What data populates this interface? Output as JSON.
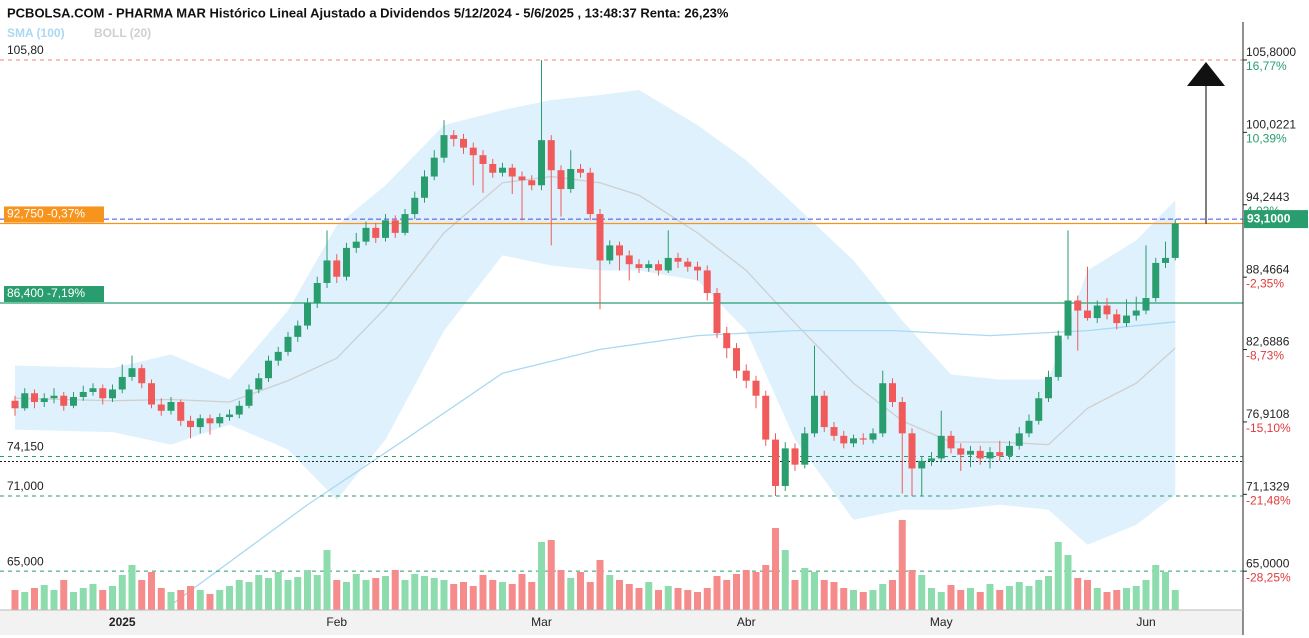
{
  "chart_data": {
    "type": "candlestick",
    "title": "PCBOLSA.COM - PHARMA MAR Histórico Lineal Ajustado a Dividendos 5/12/2024 - 5/6/2025 , 13:48:37 Renta: 26,23%",
    "legend": [
      {
        "name": "SMA (100)",
        "color": "#a9d9f3"
      },
      {
        "name": "BOLL (20)",
        "color": "#cfcfcf"
      }
    ],
    "up_color": "#2a9d6f",
    "down_color": "#f05a5a",
    "volume_up_color": "#8ddcae",
    "volume_down_color": "#f58b8b",
    "ylim": [
      61.9,
      108.83
    ],
    "yticks": [
      {
        "value": 105.8,
        "label": "105,8000"
      },
      {
        "value": 100.0221,
        "label": "100,0221"
      },
      {
        "value": 94.2443,
        "label": "94,2443"
      },
      {
        "value": 88.4664,
        "label": "88,4664"
      },
      {
        "value": 82.6886,
        "label": "82,6886"
      },
      {
        "value": 76.9108,
        "label": "76,9108"
      },
      {
        "value": 71.1329,
        "label": "71,1329"
      },
      {
        "value": 65.0,
        "label": "65,0000"
      }
    ],
    "ytick_changes": [
      "16,77%",
      "10,39%",
      "4,02%",
      "-2,35%",
      "-8,73%",
      "-15,10%",
      "-21,48%",
      "-28,25%"
    ],
    "xticks": [
      {
        "value": 11,
        "label": "2025"
      },
      {
        "value": 33,
        "label": "Feb"
      },
      {
        "value": 54,
        "label": "Mar"
      },
      {
        "value": 75,
        "label": "Abr"
      },
      {
        "value": 95,
        "label": "May"
      },
      {
        "value": 116,
        "label": "Jun"
      }
    ],
    "levels": [
      {
        "value": 105.8,
        "label": "105,80",
        "color": "#f08080",
        "style": "dashed",
        "box": false
      },
      {
        "value": 92.75,
        "label": "92,750 -0,37%",
        "color": "#f7941d",
        "style": "solid",
        "box": true
      },
      {
        "value": 86.4,
        "label": "86,400 -7,19%",
        "color": "#2a9d6f",
        "style": "solid",
        "box": true
      },
      {
        "value": 74.15,
        "label": "74,150",
        "color": "#2a9d6f",
        "style": "dashed",
        "box": false
      },
      {
        "value": 73.75,
        "label": null,
        "color": "#222222",
        "style": "dotted",
        "box": false
      },
      {
        "value": 71.0,
        "label": "71,000",
        "color": "#2a9d6f",
        "style": "dashed",
        "box": false
      },
      {
        "value": 65.0,
        "label": "65,000",
        "color": "#2a9d6f",
        "style": "dashed",
        "box": false
      }
    ],
    "last_price": {
      "value": 93.1,
      "label": "93,1000",
      "color": "#2a9d6f",
      "line_color": "#4a4af0"
    },
    "candles": [
      [
        78.6,
        79.0,
        77.4,
        78.0
      ],
      [
        78.0,
        79.6,
        77.8,
        79.2
      ],
      [
        79.2,
        79.5,
        78.0,
        78.5
      ],
      [
        78.5,
        79.2,
        78.1,
        78.8
      ],
      [
        78.8,
        79.6,
        78.4,
        79.0
      ],
      [
        79.0,
        79.3,
        77.8,
        78.2
      ],
      [
        78.2,
        79.3,
        78.0,
        78.9
      ],
      [
        78.9,
        79.8,
        78.6,
        79.3
      ],
      [
        79.3,
        80.0,
        79.0,
        79.6
      ],
      [
        79.6,
        79.9,
        78.3,
        78.8
      ],
      [
        78.8,
        79.9,
        78.5,
        79.5
      ],
      [
        79.5,
        81.5,
        79.2,
        80.5
      ],
      [
        80.5,
        82.2,
        80.2,
        81.2
      ],
      [
        81.2,
        81.5,
        79.6,
        80.0
      ],
      [
        80.0,
        80.3,
        78.0,
        78.3
      ],
      [
        78.3,
        78.8,
        77.4,
        77.8
      ],
      [
        77.8,
        78.9,
        77.5,
        78.5
      ],
      [
        78.5,
        78.7,
        76.6,
        77.0
      ],
      [
        77.0,
        77.4,
        75.6,
        76.5
      ],
      [
        76.5,
        77.5,
        76.0,
        77.2
      ],
      [
        77.2,
        77.5,
        75.9,
        76.8
      ],
      [
        76.8,
        77.6,
        76.5,
        77.3
      ],
      [
        77.3,
        77.9,
        77.0,
        77.5
      ],
      [
        77.5,
        78.6,
        77.2,
        78.2
      ],
      [
        78.2,
        79.9,
        78.0,
        79.5
      ],
      [
        79.5,
        80.8,
        79.2,
        80.4
      ],
      [
        80.4,
        82.2,
        80.1,
        81.8
      ],
      [
        81.8,
        82.9,
        81.4,
        82.5
      ],
      [
        82.5,
        84.1,
        82.2,
        83.7
      ],
      [
        83.7,
        85.0,
        83.3,
        84.6
      ],
      [
        84.6,
        86.8,
        84.3,
        86.4
      ],
      [
        86.4,
        88.5,
        86.0,
        88.0
      ],
      [
        88.0,
        92.2,
        87.6,
        89.8
      ],
      [
        89.8,
        90.3,
        88.0,
        88.5
      ],
      [
        88.5,
        91.2,
        88.2,
        90.8
      ],
      [
        90.8,
        92.0,
        90.4,
        91.3
      ],
      [
        91.3,
        92.9,
        91.0,
        92.4
      ],
      [
        92.4,
        92.8,
        91.2,
        91.6
      ],
      [
        91.6,
        93.5,
        91.3,
        93.0
      ],
      [
        93.0,
        93.4,
        91.6,
        92.0
      ],
      [
        92.0,
        93.9,
        91.8,
        93.5
      ],
      [
        93.5,
        95.3,
        93.1,
        94.8
      ],
      [
        94.8,
        97.0,
        94.4,
        96.5
      ],
      [
        96.5,
        98.6,
        96.2,
        98.0
      ],
      [
        98.0,
        101.0,
        97.6,
        99.8
      ],
      [
        99.8,
        100.2,
        98.9,
        99.5
      ],
      [
        99.5,
        99.9,
        98.3,
        98.8
      ],
      [
        98.8,
        99.2,
        95.8,
        98.2
      ],
      [
        98.2,
        98.6,
        95.2,
        97.5
      ],
      [
        97.5,
        97.9,
        96.4,
        96.8
      ],
      [
        96.8,
        97.6,
        96.5,
        97.2
      ],
      [
        97.2,
        97.5,
        95.1,
        96.5
      ],
      [
        96.5,
        96.9,
        93.0,
        96.2
      ],
      [
        96.2,
        96.6,
        95.4,
        95.8
      ],
      [
        95.8,
        105.8,
        95.4,
        99.4
      ],
      [
        99.4,
        99.8,
        91.0,
        97.0
      ],
      [
        97.0,
        97.4,
        93.3,
        95.5
      ],
      [
        95.5,
        98.6,
        95.2,
        97.1
      ],
      [
        97.1,
        97.5,
        96.4,
        96.8
      ],
      [
        96.8,
        97.2,
        93.0,
        93.5
      ],
      [
        93.5,
        93.9,
        85.9,
        89.8
      ],
      [
        89.8,
        91.4,
        89.5,
        91.0
      ],
      [
        91.0,
        91.3,
        89.0,
        90.2
      ],
      [
        90.2,
        90.6,
        88.2,
        89.5
      ],
      [
        89.5,
        89.9,
        88.8,
        89.2
      ],
      [
        89.2,
        89.8,
        88.9,
        89.5
      ],
      [
        89.5,
        89.8,
        88.6,
        89.0
      ],
      [
        89.0,
        92.2,
        88.8,
        90.0
      ],
      [
        90.0,
        90.4,
        89.2,
        89.7
      ],
      [
        89.7,
        90.0,
        88.9,
        89.3
      ],
      [
        89.3,
        89.7,
        88.2,
        89.0
      ],
      [
        89.0,
        89.4,
        86.6,
        87.2
      ],
      [
        87.2,
        87.6,
        83.6,
        84.0
      ],
      [
        84.0,
        84.5,
        82.0,
        82.8
      ],
      [
        82.8,
        83.2,
        80.4,
        81.0
      ],
      [
        81.0,
        81.5,
        79.6,
        80.2
      ],
      [
        80.2,
        80.6,
        78.0,
        79.0
      ],
      [
        79.0,
        79.4,
        75.0,
        75.5
      ],
      [
        75.5,
        76.0,
        71.0,
        71.8
      ],
      [
        71.8,
        75.3,
        71.4,
        74.8
      ],
      [
        74.8,
        75.2,
        73.0,
        73.5
      ],
      [
        73.5,
        76.5,
        73.2,
        76.0
      ],
      [
        76.0,
        83.0,
        75.7,
        79.0
      ],
      [
        79.0,
        79.4,
        76.1,
        76.5
      ],
      [
        76.5,
        76.9,
        75.4,
        75.8
      ],
      [
        75.8,
        76.2,
        74.8,
        75.2
      ],
      [
        75.2,
        75.9,
        74.9,
        75.6
      ],
      [
        75.6,
        76.0,
        75.1,
        75.5
      ],
      [
        75.5,
        76.4,
        75.2,
        76.0
      ],
      [
        76.0,
        81.0,
        75.7,
        80.0
      ],
      [
        80.0,
        80.4,
        78.1,
        78.5
      ],
      [
        78.5,
        78.9,
        71.2,
        76.0
      ],
      [
        76.0,
        76.4,
        71.0,
        73.2
      ],
      [
        73.2,
        74.2,
        71.0,
        73.8
      ],
      [
        73.8,
        74.5,
        73.4,
        74.0
      ],
      [
        74.0,
        77.8,
        73.7,
        75.8
      ],
      [
        75.8,
        76.2,
        74.4,
        74.8
      ],
      [
        74.8,
        75.2,
        73.0,
        74.3
      ],
      [
        74.3,
        75.0,
        73.3,
        74.6
      ],
      [
        74.6,
        75.0,
        73.5,
        74.0
      ],
      [
        74.0,
        74.9,
        73.2,
        74.5
      ],
      [
        74.5,
        75.4,
        73.8,
        74.2
      ],
      [
        74.2,
        75.4,
        73.9,
        75.0
      ],
      [
        75.0,
        76.5,
        74.7,
        76.0
      ],
      [
        76.0,
        77.5,
        75.7,
        77.0
      ],
      [
        77.0,
        79.3,
        76.7,
        78.8
      ],
      [
        78.8,
        81.0,
        78.5,
        80.5
      ],
      [
        80.5,
        84.2,
        80.2,
        83.8
      ],
      [
        83.8,
        92.2,
        83.5,
        86.6
      ],
      [
        86.6,
        87.0,
        82.6,
        85.8
      ],
      [
        85.8,
        89.3,
        85.0,
        85.2
      ],
      [
        85.2,
        86.6,
        84.8,
        86.2
      ],
      [
        86.2,
        86.8,
        85.1,
        85.5
      ],
      [
        85.5,
        85.9,
        84.3,
        84.8
      ],
      [
        84.8,
        86.7,
        84.5,
        85.4
      ],
      [
        85.4,
        86.9,
        85.0,
        85.8
      ],
      [
        85.8,
        91.0,
        85.5,
        86.8
      ],
      [
        86.8,
        90.0,
        86.5,
        89.6
      ],
      [
        89.6,
        91.3,
        89.2,
        90.0
      ],
      [
        90.0,
        93.1,
        89.8,
        92.75
      ]
    ],
    "volume": [
      20,
      18,
      22,
      25,
      20,
      30,
      18,
      22,
      26,
      20,
      24,
      35,
      45,
      30,
      38,
      22,
      18,
      20,
      24,
      20,
      16,
      20,
      24,
      30,
      28,
      35,
      32,
      38,
      30,
      33,
      40,
      35,
      60,
      30,
      28,
      36,
      30,
      32,
      34,
      40,
      30,
      36,
      34,
      32,
      30,
      26,
      28,
      24,
      35,
      30,
      28,
      26,
      36,
      28,
      68,
      70,
      40,
      32,
      38,
      28,
      50,
      35,
      30,
      26,
      22,
      28,
      20,
      24,
      22,
      20,
      18,
      22,
      34,
      30,
      36,
      40,
      38,
      45,
      82,
      60,
      30,
      42,
      38,
      30,
      28,
      22,
      20,
      18,
      20,
      26,
      30,
      90,
      40,
      35,
      22,
      18,
      25,
      20,
      22,
      18,
      26,
      20,
      24,
      28,
      24,
      30,
      34,
      68,
      55,
      32,
      30,
      22,
      18,
      20,
      22,
      24,
      30,
      45,
      38,
      20
    ],
    "bands": {
      "x": [
        0,
        10,
        16,
        22,
        28,
        33,
        38,
        44,
        50,
        55,
        60,
        64,
        70,
        75,
        80,
        86,
        91,
        96,
        101,
        106,
        110,
        115,
        119
      ],
      "upper": [
        81.4,
        81.2,
        82.3,
        80.3,
        85.8,
        92.6,
        95.8,
        100.6,
        101.8,
        102.6,
        103.0,
        103.4,
        100.6,
        97.8,
        94.2,
        89.8,
        85.0,
        80.7,
        80.3,
        80.3,
        89.0,
        91.4,
        94.6
      ],
      "middle": [
        78.8,
        78.6,
        78.7,
        78.5,
        80.2,
        82.0,
        86.0,
        92.0,
        96.0,
        96.5,
        96.0,
        95.0,
        92.0,
        89.0,
        84.8,
        80.0,
        77.0,
        75.3,
        75.3,
        75.1,
        78.0,
        80.0,
        82.8
      ],
      "lower": [
        76.3,
        76.1,
        75.1,
        76.7,
        74.7,
        70.7,
        75.5,
        84.2,
        90.2,
        89.4,
        89.0,
        89.0,
        88.2,
        84.2,
        75.5,
        69.1,
        69.9,
        69.9,
        70.3,
        69.9,
        67.1,
        68.7,
        71.1
      ]
    },
    "sma": {
      "x": [
        16,
        30,
        40,
        50,
        60,
        70,
        80,
        90,
        100,
        110,
        119
      ],
      "values": [
        62.3,
        70.3,
        75.5,
        80.8,
        82.7,
        83.8,
        84.2,
        84.2,
        83.8,
        84.2,
        84.9
      ]
    }
  }
}
